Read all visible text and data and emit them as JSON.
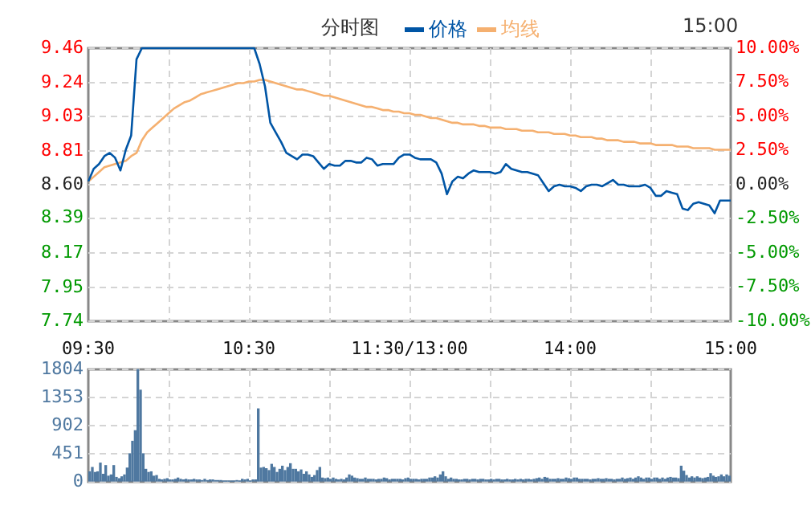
{
  "chart_data": [
    {
      "type": "line",
      "title": "分时图",
      "annotations": [
        "15:00"
      ],
      "legend": "top",
      "grid": true,
      "categories": [
        "09:30",
        null,
        null,
        null,
        null,
        null,
        null,
        null,
        null,
        null,
        null,
        null,
        null,
        null,
        null,
        null,
        null,
        null,
        null,
        null,
        null,
        null,
        null,
        null,
        null,
        null,
        null,
        null,
        null,
        null,
        "10:30",
        null,
        null,
        null,
        null,
        null,
        null,
        null,
        null,
        null,
        null,
        null,
        null,
        null,
        null,
        null,
        null,
        null,
        null,
        null,
        null,
        null,
        null,
        null,
        null,
        null,
        null,
        null,
        null,
        null,
        "11:30/13:00",
        null,
        null,
        null,
        null,
        null,
        null,
        null,
        null,
        null,
        null,
        null,
        null,
        null,
        null,
        null,
        null,
        null,
        null,
        null,
        null,
        null,
        null,
        null,
        null,
        null,
        null,
        null,
        null,
        null,
        "14:00",
        null,
        null,
        null,
        null,
        null,
        null,
        null,
        null,
        null,
        null,
        null,
        null,
        null,
        null,
        null,
        null,
        null,
        null,
        null,
        null,
        null,
        null,
        null,
        null,
        null,
        null,
        null,
        null,
        null,
        "15:00"
      ],
      "ylim": [
        7.74,
        9.46
      ],
      "yticks": [
        7.74,
        7.95,
        8.17,
        8.39,
        {
          "value": 8.6,
          "label": "8.60"
        },
        8.81,
        9.03,
        9.24,
        9.46
      ],
      "y2lim": [
        -10,
        10
      ],
      "y2ticks": [
        {
          "value": -10,
          "label": "-10.00%"
        },
        {
          "value": -7.5,
          "label": "-7.50%"
        },
        {
          "value": -5,
          "label": "-5.00%"
        },
        {
          "value": -2.5,
          "label": "-2.50%"
        },
        {
          "value": 0,
          "label": "0.00%"
        },
        {
          "value": 2.5,
          "label": "2.50%"
        },
        {
          "value": 5,
          "label": "5.00%"
        },
        {
          "value": 7.5,
          "label": "7.50%"
        },
        {
          "value": 10,
          "label": "10.00%"
        }
      ],
      "series": [
        {
          "name": "价格",
          "color": "#0055a5",
          "values": [
            8.62,
            8.7,
            8.73,
            8.78,
            8.8,
            8.77,
            8.69,
            8.82,
            8.91,
            9.39,
            9.46,
            9.46,
            9.46,
            9.46,
            9.46,
            9.46,
            9.46,
            9.46,
            9.46,
            9.46,
            9.46,
            9.46,
            9.46,
            9.46,
            9.46,
            9.46,
            9.46,
            9.46,
            9.46,
            9.46,
            9.46,
            9.46,
            9.36,
            9.22,
            8.99,
            8.93,
            8.87,
            8.8,
            8.78,
            8.76,
            8.79,
            8.79,
            8.78,
            8.74,
            8.7,
            8.73,
            8.72,
            8.72,
            8.75,
            8.75,
            8.74,
            8.74,
            8.77,
            8.76,
            8.72,
            8.73,
            8.73,
            8.73,
            8.77,
            8.79,
            8.79,
            8.77,
            8.76,
            8.76,
            8.76,
            8.74,
            8.67,
            8.54,
            8.62,
            8.65,
            8.64,
            8.67,
            8.69,
            8.68,
            8.68,
            8.68,
            8.67,
            8.68,
            8.73,
            8.7,
            8.69,
            8.68,
            8.68,
            8.67,
            8.66,
            8.61,
            8.56,
            8.59,
            8.6,
            8.59,
            8.59,
            8.58,
            8.56,
            8.59,
            8.6,
            8.6,
            8.59,
            8.61,
            8.63,
            8.6,
            8.6,
            8.59,
            8.59,
            8.59,
            8.6,
            8.58,
            8.53,
            8.53,
            8.56,
            8.55,
            8.54,
            8.45,
            8.44,
            8.48,
            8.49,
            8.48,
            8.47,
            8.42,
            8.5,
            8.5,
            8.5
          ]
        },
        {
          "name": "均线",
          "color": "#f5b070",
          "values": [
            8.62,
            8.65,
            8.68,
            8.71,
            8.72,
            8.73,
            8.74,
            8.75,
            8.78,
            8.8,
            8.88,
            8.93,
            8.96,
            8.99,
            9.02,
            9.05,
            9.08,
            9.1,
            9.12,
            9.13,
            9.15,
            9.17,
            9.18,
            9.19,
            9.2,
            9.21,
            9.22,
            9.23,
            9.24,
            9.24,
            9.25,
            9.25,
            9.26,
            9.26,
            9.25,
            9.24,
            9.23,
            9.22,
            9.21,
            9.2,
            9.2,
            9.19,
            9.18,
            9.17,
            9.16,
            9.16,
            9.15,
            9.14,
            9.13,
            9.12,
            9.11,
            9.1,
            9.09,
            9.09,
            9.08,
            9.07,
            9.07,
            9.06,
            9.06,
            9.05,
            9.05,
            9.04,
            9.04,
            9.03,
            9.02,
            9.02,
            9.01,
            9.0,
            8.99,
            8.99,
            8.98,
            8.98,
            8.98,
            8.97,
            8.97,
            8.96,
            8.96,
            8.96,
            8.95,
            8.95,
            8.95,
            8.94,
            8.94,
            8.94,
            8.93,
            8.93,
            8.93,
            8.92,
            8.92,
            8.92,
            8.91,
            8.91,
            8.9,
            8.9,
            8.9,
            8.89,
            8.89,
            8.88,
            8.88,
            8.88,
            8.87,
            8.87,
            8.87,
            8.86,
            8.86,
            8.86,
            8.85,
            8.85,
            8.85,
            8.85,
            8.84,
            8.84,
            8.84,
            8.83,
            8.83,
            8.83,
            8.83,
            8.82,
            8.82,
            8.82,
            8.82
          ]
        }
      ]
    },
    {
      "type": "bar",
      "grid": true,
      "tick_labels": "y",
      "categories": [
        null,
        null,
        null,
        null,
        null,
        null,
        null,
        null,
        null,
        null,
        null,
        null,
        null,
        null,
        null,
        null,
        null,
        null,
        null,
        null,
        null,
        null,
        null,
        null,
        null,
        null,
        null,
        null,
        null,
        null,
        null,
        null,
        null,
        null,
        null,
        null,
        null,
        null,
        null,
        null,
        null,
        null,
        null,
        null,
        null,
        null,
        null,
        null,
        null,
        null,
        null,
        null,
        null,
        null,
        null,
        null,
        null,
        null,
        null,
        null,
        null,
        null,
        null,
        null,
        null,
        null,
        null,
        null,
        null,
        null,
        null,
        null,
        null,
        null,
        null,
        null,
        null,
        null,
        null,
        null,
        null,
        null,
        null,
        null,
        null,
        null,
        null,
        null,
        null,
        null,
        null,
        null,
        null,
        null,
        null,
        null,
        null,
        null,
        null,
        null,
        null,
        null,
        null,
        null,
        null,
        null,
        null,
        null,
        null,
        null,
        null,
        null,
        null,
        null,
        null,
        null,
        null,
        null,
        null,
        null,
        null,
        null,
        null,
        null,
        null,
        null,
        null,
        null,
        null,
        null,
        null,
        null,
        null,
        null,
        null,
        null,
        null,
        null,
        null,
        null,
        null,
        null,
        null,
        null,
        null,
        null,
        null,
        null,
        null,
        null,
        null,
        null,
        null,
        null,
        null,
        null,
        null,
        null,
        null,
        null,
        null,
        null,
        null,
        null,
        null,
        null,
        null,
        null,
        null,
        null,
        null,
        null,
        null,
        null,
        null,
        null,
        null,
        null,
        null,
        null,
        null,
        null,
        null,
        null,
        null,
        null,
        null,
        null,
        null,
        null,
        null,
        null,
        null,
        null,
        null,
        null,
        null,
        null,
        null,
        null,
        null,
        null,
        null,
        null,
        null,
        null,
        null,
        null,
        null,
        null,
        null,
        null,
        null,
        null,
        null,
        null,
        null,
        null,
        null,
        null,
        null,
        null,
        null,
        null,
        null,
        null,
        null,
        null,
        null,
        null,
        null,
        null,
        null,
        null,
        null,
        null,
        null,
        null,
        null,
        null
      ],
      "ylim": [
        0,
        1804
      ],
      "yticks": [
        0,
        451,
        902,
        1353,
        1804
      ],
      "series": [
        {
          "color": "#4f78a0",
          "values": [
            160,
            230,
            150,
            160,
            300,
            120,
            260,
            90,
            110,
            260,
            70,
            50,
            80,
            110,
            220,
            450,
            650,
            820,
            1800,
            1470,
            450,
            200,
            150,
            160,
            90,
            100,
            40,
            30,
            40,
            50,
            30,
            30,
            40,
            60,
            40,
            30,
            40,
            30,
            30,
            40,
            30,
            30,
            20,
            40,
            20,
            30,
            30,
            20,
            20,
            20,
            10,
            10,
            10,
            10,
            10,
            20,
            10,
            40,
            30,
            40,
            10,
            30,
            30,
            1170,
            220,
            230,
            210,
            180,
            280,
            230,
            150,
            200,
            250,
            180,
            230,
            290,
            200,
            200,
            160,
            190,
            120,
            160,
            110,
            70,
            100,
            180,
            230,
            60,
            50,
            60,
            40,
            60,
            40,
            30,
            40,
            30,
            60,
            110,
            90,
            60,
            50,
            40,
            40,
            60,
            40,
            40,
            40,
            30,
            40,
            40,
            60,
            50,
            30,
            40,
            40,
            40,
            40,
            30,
            50,
            60,
            40,
            40,
            40,
            30,
            40,
            40,
            40,
            60,
            60,
            80,
            60,
            110,
            160,
            80,
            40,
            60,
            40,
            40,
            30,
            30,
            40,
            40,
            30,
            40,
            40,
            30,
            40,
            40,
            30,
            30,
            40,
            30,
            40,
            40,
            30,
            30,
            40,
            30,
            30,
            40,
            30,
            40,
            30,
            40,
            40,
            30,
            40,
            50,
            60,
            40,
            70,
            60,
            40,
            40,
            40,
            50,
            40,
            40,
            60,
            50,
            40,
            60,
            60,
            40,
            40,
            40,
            40,
            30,
            40,
            40,
            50,
            40,
            40,
            50,
            40,
            40,
            30,
            40,
            40,
            60,
            40,
            50,
            60,
            40,
            60,
            80,
            60,
            40,
            60,
            60,
            40,
            60,
            60,
            40,
            60,
            40,
            60,
            70,
            60,
            60,
            50,
            250,
            170,
            100,
            60,
            80,
            60,
            80,
            60,
            50,
            60,
            70,
            130,
            90,
            70,
            80,
            110,
            80,
            110,
            90
          ]
        }
      ]
    }
  ]
}
